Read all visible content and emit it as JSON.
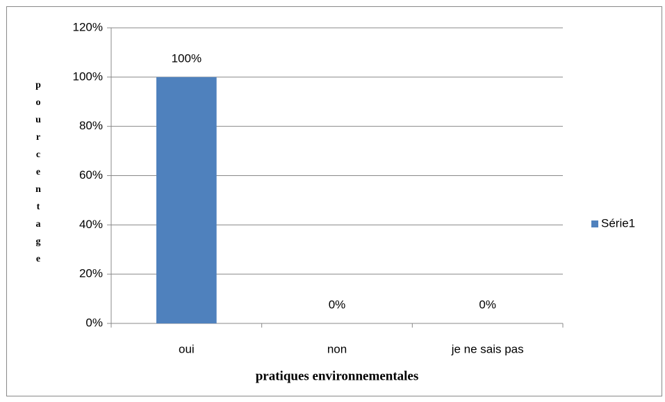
{
  "chart_data": {
    "type": "bar",
    "categories": [
      "oui",
      "non",
      "je ne sais pas"
    ],
    "series": [
      {
        "name": "Série1",
        "color": "#4f81bd",
        "values": [
          100,
          0,
          0
        ],
        "value_labels": [
          "100%",
          "0%",
          "0%"
        ]
      }
    ],
    "ylim": [
      0,
      120
    ],
    "yticks": [
      {
        "value": 0,
        "label": "0%"
      },
      {
        "value": 20,
        "label": "20%"
      },
      {
        "value": 40,
        "label": "40%"
      },
      {
        "value": 60,
        "label": "60%"
      },
      {
        "value": 80,
        "label": "80%"
      },
      {
        "value": 100,
        "label": "100%"
      },
      {
        "value": 120,
        "label": "120%"
      }
    ],
    "xlabel": "pratiques environnementales",
    "ylabel": "pourcentage",
    "grid": true,
    "legend": "right"
  }
}
